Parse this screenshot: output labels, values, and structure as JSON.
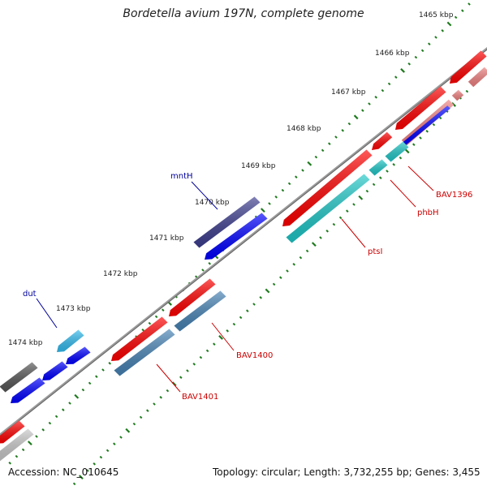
{
  "title": "Bordetella avium 197N, complete genome",
  "footer": {
    "accession_label": "Accession:",
    "accession": "NC_010645",
    "topology_label": "Topology:",
    "topology": "circular",
    "length_label": "Length:",
    "length": "3,732,255 bp",
    "genes_label": "Genes:",
    "genes": "3,455"
  },
  "colors": {
    "backbone": "#888888",
    "ruler_tick": "#1e7a1e",
    "forward_gene": "#ff0000",
    "forward_gene_light": "#f08080",
    "reverse_gene": "#0000ff",
    "label_forward": "#cc0000",
    "label_reverse": "#000099",
    "cyan_gene": "#1fc7c7",
    "steel_gene": "#4682b4",
    "indigo_gene": "#3d3d8f",
    "light_blue_gene": "#33bbee",
    "grey_gene": "#555555",
    "light_grey_gene": "#c8c8c8"
  },
  "ruler_labels": [
    "1465 kbp",
    "1466 kbp",
    "1467 kbp",
    "1468 kbp",
    "1469 kbp",
    "1470 kbp",
    "1471 kbp",
    "1472 kbp",
    "1473 kbp",
    "1474 kbp"
  ],
  "gene_labels": [
    "mntH",
    "dut",
    "BAV1396",
    "phbH",
    "ptsI",
    "BAV1400",
    "BAV1401"
  ]
}
